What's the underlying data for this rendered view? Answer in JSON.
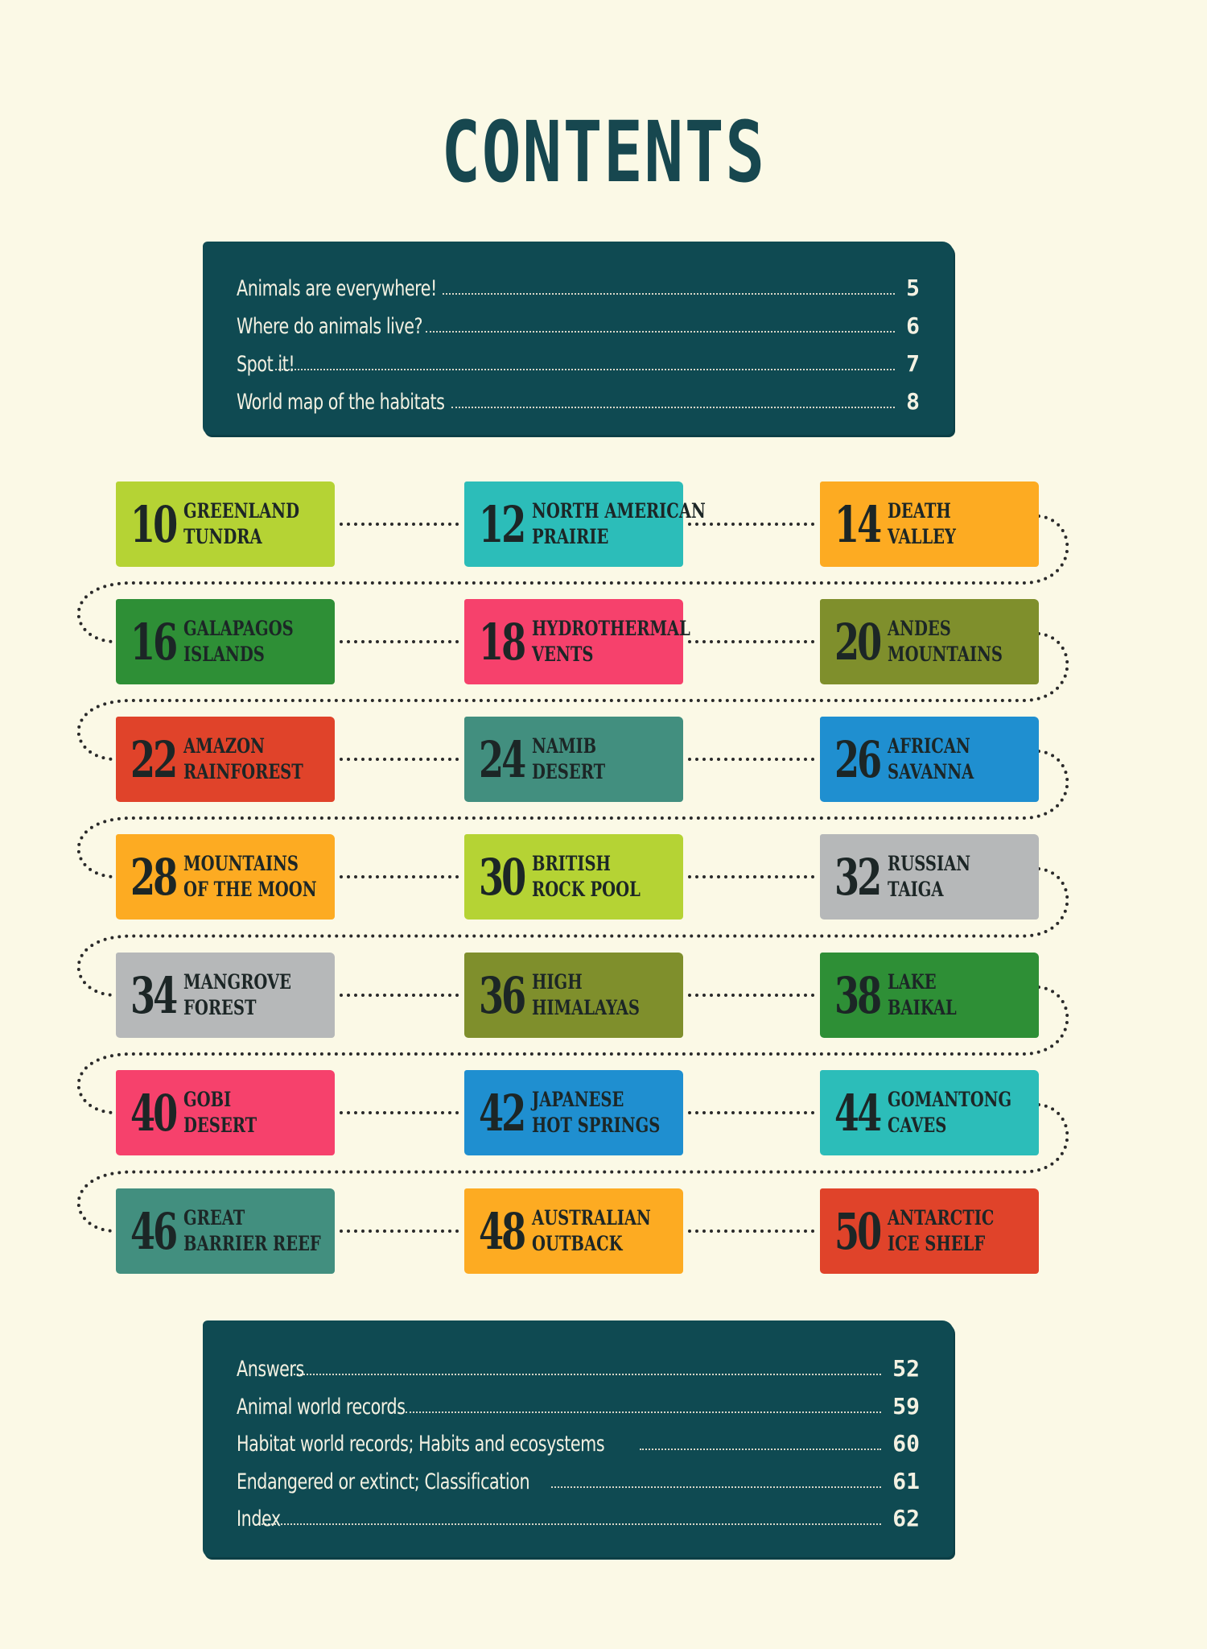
{
  "title": "CONTENTS",
  "intro_entries": [
    {
      "label": "Animals are everywhere!",
      "page": "5"
    },
    {
      "label": "Where do animals live?",
      "page": "6"
    },
    {
      "label": "Spot it!",
      "page": "7"
    },
    {
      "label": "World map of the habitats",
      "page": "8"
    }
  ],
  "habitats": [
    {
      "page": "10",
      "line1": "GREENLAND",
      "line2": "TUNDRA",
      "color": "#b5d334"
    },
    {
      "page": "12",
      "line1": "NORTH AMERICAN",
      "line2": "PRAIRIE",
      "color": "#2cbdb9"
    },
    {
      "page": "14",
      "line1": "DEATH",
      "line2": "VALLEY",
      "color": "#fdab22"
    },
    {
      "page": "16",
      "line1": "GALAPAGOS",
      "line2": "ISLANDS",
      "color": "#2e8f36"
    },
    {
      "page": "18",
      "line1": "HYDROTHERMAL",
      "line2": "VENTS",
      "color": "#f6416c"
    },
    {
      "page": "20",
      "line1": "ANDES",
      "line2": "MOUNTAINS",
      "color": "#7f8f2c"
    },
    {
      "page": "22",
      "line1": "AMAZON",
      "line2": "RAINFOREST",
      "color": "#e0432a"
    },
    {
      "page": "24",
      "line1": "NAMIB",
      "line2": "DESERT",
      "color": "#428f7f"
    },
    {
      "page": "26",
      "line1": "AFRICAN",
      "line2": "SAVANNA",
      "color": "#1f8fd0"
    },
    {
      "page": "28",
      "line1": "MOUNTAINS",
      "line2": "OF THE MOON",
      "color": "#fdab22"
    },
    {
      "page": "30",
      "line1": "BRITISH",
      "line2": "ROCK POOL",
      "color": "#b5d334"
    },
    {
      "page": "32",
      "line1": "RUSSIAN",
      "line2": "TAIGA",
      "color": "#b6b8b9"
    },
    {
      "page": "34",
      "line1": "MANGROVE",
      "line2": "FOREST",
      "color": "#b6b8b9"
    },
    {
      "page": "36",
      "line1": "HIGH",
      "line2": "HIMALAYAS",
      "color": "#7f8f2c"
    },
    {
      "page": "38",
      "line1": "LAKE",
      "line2": "BAIKAL",
      "color": "#2e8f36"
    },
    {
      "page": "40",
      "line1": "GOBI",
      "line2": "DESERT",
      "color": "#f6416c"
    },
    {
      "page": "42",
      "line1": "JAPANESE",
      "line2": "HOT SPRINGS",
      "color": "#1f8fd0"
    },
    {
      "page": "44",
      "line1": "GOMANTONG",
      "line2": "CAVES",
      "color": "#2cbdb9"
    },
    {
      "page": "46",
      "line1": "GREAT",
      "line2": "BARRIER REEF",
      "color": "#428f7f"
    },
    {
      "page": "48",
      "line1": "AUSTRALIAN",
      "line2": "OUTBACK",
      "color": "#fdab22"
    },
    {
      "page": "50",
      "line1": "ANTARCTIC",
      "line2": "ICE SHELF",
      "color": "#e0432a"
    }
  ],
  "back_entries": [
    {
      "label": "Answers",
      "page": "52"
    },
    {
      "label": "Animal world records",
      "page": "59"
    },
    {
      "label": "Habitat world records; Habits and ecosystems",
      "page": "60"
    },
    {
      "label": "Endangered or extinct; Classification",
      "page": "61"
    },
    {
      "label": "Index",
      "page": "62"
    }
  ],
  "colors": {
    "panel": "#0f4a52",
    "title": "#17474f",
    "background": "#fbf9e6"
  }
}
